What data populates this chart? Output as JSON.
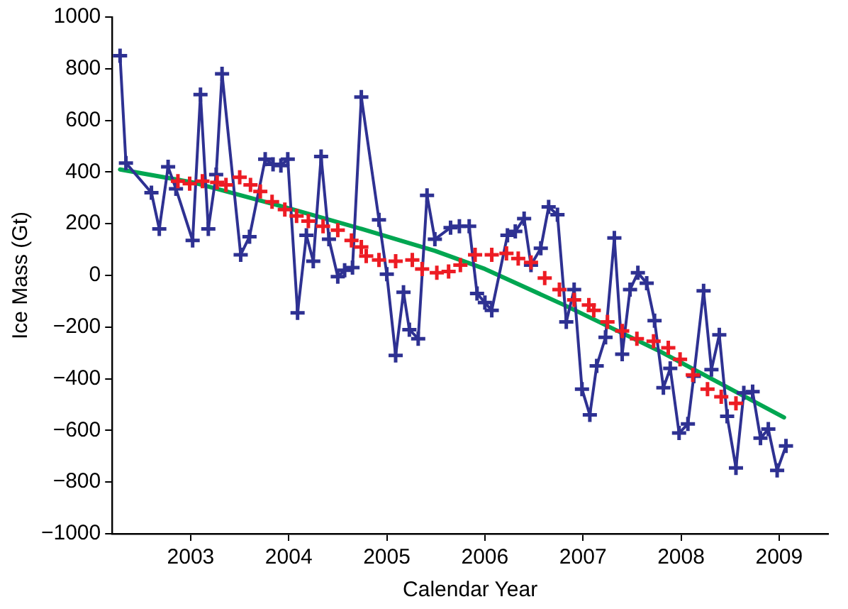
{
  "chart_data": {
    "type": "line",
    "xlabel": "Calendar Year",
    "ylabel": "Ice Mass (Gt)",
    "xlim": [
      2002.2,
      2009.5
    ],
    "xticks": [
      2003,
      2004,
      2005,
      2006,
      2007,
      2008,
      2009
    ],
    "ylim": [
      -1000,
      1000
    ],
    "yticks": [
      -1000,
      -800,
      -600,
      -400,
      -200,
      0,
      200,
      400,
      600,
      800,
      1000
    ],
    "grid": false,
    "legend": false,
    "line_style": "solid",
    "series": [
      {
        "marker": "cross",
        "color": "#2e3192",
        "x": [
          2002.28,
          2002.34,
          2002.6,
          2002.68,
          2002.77,
          2002.85,
          2003.02,
          2003.1,
          2003.18,
          2003.26,
          2003.32,
          2003.51,
          2003.6,
          2003.76,
          2003.84,
          2003.92,
          2003.99,
          2004.09,
          2004.18,
          2004.25,
          2004.33,
          2004.41,
          2004.5,
          2004.57,
          2004.65,
          2004.74,
          2004.92,
          2005.0,
          2005.09,
          2005.17,
          2005.23,
          2005.32,
          2005.41,
          2005.49,
          2005.65,
          2005.74,
          2005.84,
          2005.92,
          2006.0,
          2006.07,
          2006.23,
          2006.31,
          2006.4,
          2006.47,
          2006.57,
          2006.65,
          2006.74,
          2006.83,
          2006.91,
          2006.99,
          2007.07,
          2007.14,
          2007.23,
          2007.32,
          2007.4,
          2007.48,
          2007.56,
          2007.65,
          2007.73,
          2007.82,
          2007.89,
          2007.98,
          2008.07,
          2008.13,
          2008.23,
          2008.31,
          2008.39,
          2008.47,
          2008.56,
          2008.64,
          2008.73,
          2008.81,
          2008.89,
          2008.98,
          2009.07
        ],
        "values": [
          850,
          435,
          320,
          180,
          420,
          335,
          135,
          700,
          180,
          390,
          780,
          80,
          150,
          450,
          430,
          425,
          450,
          -145,
          155,
          55,
          460,
          140,
          -5,
          20,
          30,
          690,
          215,
          5,
          -310,
          -65,
          -210,
          -245,
          310,
          140,
          185,
          190,
          190,
          -70,
          -105,
          -135,
          155,
          170,
          220,
          40,
          105,
          265,
          235,
          -180,
          -55,
          -440,
          -540,
          -350,
          -240,
          145,
          -305,
          -55,
          10,
          -30,
          -175,
          -435,
          -360,
          -610,
          -575,
          -390,
          -60,
          -365,
          -230,
          -545,
          -745,
          -455,
          -450,
          -630,
          -595,
          -755,
          -660
        ]
      },
      {
        "type": "scatter",
        "marker": "cross",
        "color": "#ed1c24",
        "x": [
          2002.87,
          2002.99,
          2003.12,
          2003.27,
          2003.36,
          2003.5,
          2003.61,
          2003.71,
          2003.83,
          2003.96,
          2004.08,
          2004.2,
          2004.35,
          2004.5,
          2004.64,
          2004.74,
          2004.79,
          2004.92,
          2005.09,
          2005.26,
          2005.36,
          2005.51,
          2005.63,
          2005.75,
          2005.9,
          2006.07,
          2006.22,
          2006.34,
          2006.47,
          2006.61,
          2006.76,
          2006.91,
          2007.06,
          2007.11,
          2007.25,
          2007.4,
          2007.55,
          2007.72,
          2007.87,
          2007.99,
          2008.12,
          2008.27,
          2008.41,
          2008.56
        ],
        "values": [
          365,
          355,
          365,
          360,
          350,
          380,
          350,
          325,
          285,
          255,
          230,
          210,
          190,
          175,
          135,
          110,
          75,
          60,
          55,
          60,
          25,
          10,
          15,
          40,
          80,
          80,
          85,
          65,
          50,
          -10,
          -55,
          -95,
          -115,
          -135,
          -180,
          -215,
          -245,
          -255,
          -280,
          -325,
          -385,
          -440,
          -470,
          -495
        ]
      },
      {
        "marker": "none",
        "color": "#00a651",
        "x": [
          2002.28,
          2003.02,
          2004.0,
          2004.74,
          2005.49,
          2006.0,
          2006.81,
          2007.79,
          2009.05
        ],
        "values": [
          410,
          360,
          260,
          180,
          95,
          25,
          -115,
          -295,
          -550
        ]
      }
    ]
  }
}
